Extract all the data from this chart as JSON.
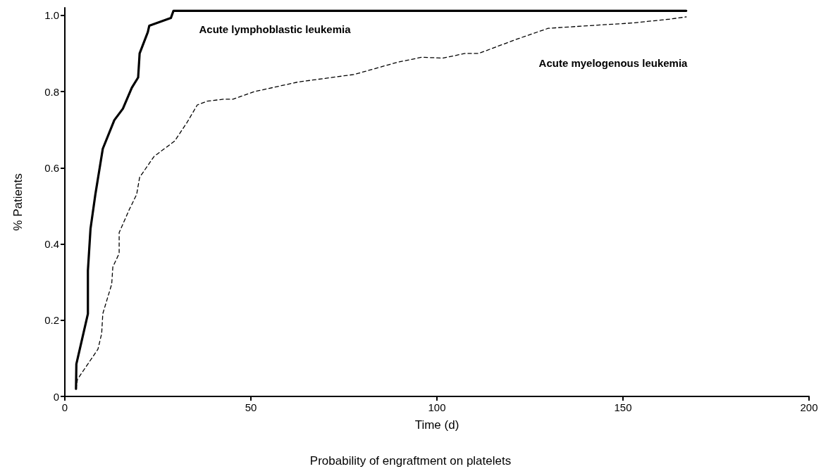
{
  "chart_data": {
    "type": "line",
    "title": "Probability of engraftment on platelets",
    "xlabel": "Time (d)",
    "ylabel": "% Patients",
    "xlim": [
      0,
      200
    ],
    "xticks": [
      0,
      50,
      100,
      150,
      200
    ],
    "ylim": [
      0,
      1.02
    ],
    "yticks": [
      0,
      0.2,
      0.4,
      0.6,
      0.8,
      {
        "value": 1,
        "label": "1.0"
      }
    ],
    "grid": false,
    "marker": "none",
    "series": [
      {
        "color": "#000000",
        "line_style": "solid",
        "x": [
          3,
          3.1,
          6.2,
          6.2,
          6.9,
          8.2,
          9.2,
          10.2,
          13.3,
          15.6,
          18,
          19.7,
          20.1,
          22.3,
          22.7,
          28.5,
          29.2,
          167
        ],
        "values": [
          0.02,
          0.085,
          0.217,
          0.33,
          0.44,
          0.53,
          0.59,
          0.65,
          0.725,
          0.755,
          0.81,
          0.837,
          0.9,
          0.956,
          0.973,
          0.993,
          1.012,
          1.012
        ]
      },
      {
        "color": "#000000",
        "line_style": "dashed",
        "x": [
          3,
          3.4,
          8.9,
          9.9,
          10.2,
          12.6,
          12.9,
          14.6,
          14.6,
          17.3,
          19.3,
          20.1,
          24,
          29.5,
          32.9,
          35.6,
          38.3,
          42.7,
          45.2,
          51,
          62.6,
          77.8,
          89.4,
          95.9,
          101.7,
          107.5,
          111.2,
          121.3,
          129.9,
          140.9,
          152.5,
          162.5,
          167
        ],
        "values": [
          0.02,
          0.045,
          0.124,
          0.165,
          0.217,
          0.295,
          0.34,
          0.375,
          0.43,
          0.49,
          0.53,
          0.575,
          0.63,
          0.67,
          0.72,
          0.765,
          0.775,
          0.78,
          0.78,
          0.8,
          0.825,
          0.845,
          0.877,
          0.89,
          0.888,
          0.9,
          0.9,
          0.937,
          0.966,
          0.973,
          0.98,
          0.99,
          0.996
        ]
      }
    ],
    "annotations": [
      "Acute lymphoblastic leukemia",
      "Acute myelogenous leukemia"
    ]
  }
}
